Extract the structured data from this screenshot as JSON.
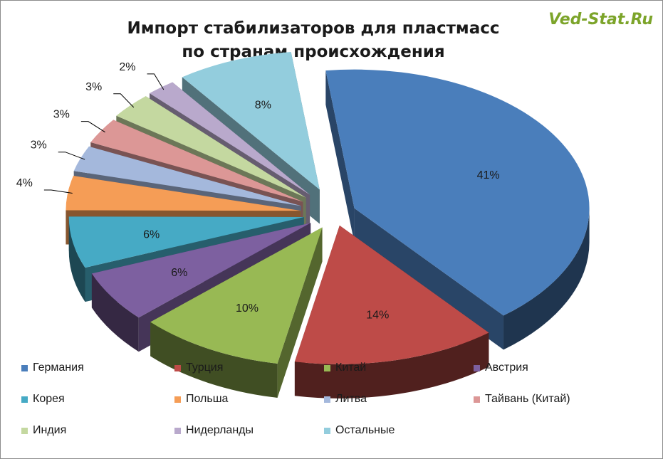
{
  "watermark": "Ved-Stat.Ru",
  "chart_data": {
    "type": "pie",
    "style": "3d-exploded",
    "title": [
      "Импорт стабилизаторов для пластмасс",
      "по странам происхождения"
    ],
    "legend_position": "bottom",
    "series": [
      {
        "name": "",
        "slices": [
          {
            "label": "Германия",
            "value": 41,
            "display": "41%",
            "color": "#4a7ebb"
          },
          {
            "label": "Турция",
            "value": 14,
            "display": "14%",
            "color": "#be4b48"
          },
          {
            "label": "Китай",
            "value": 10,
            "display": "10%",
            "color": "#98b954"
          },
          {
            "label": "Австрия",
            "value": 6,
            "display": "6%",
            "color": "#7d60a0"
          },
          {
            "label": "Корея",
            "value": 6,
            "display": "6%",
            "color": "#46aac5"
          },
          {
            "label": "Польша",
            "value": 4,
            "display": "4%",
            "color": "#f59d56"
          },
          {
            "label": "Литва",
            "value": 3,
            "display": "3%",
            "color": "#a4b8dc"
          },
          {
            "label": "Тайвань (Китай)",
            "value": 3,
            "display": "3%",
            "color": "#dc9796"
          },
          {
            "label": "Индия",
            "value": 3,
            "display": "3%",
            "color": "#c4d8a0"
          },
          {
            "label": "Нидерланды",
            "value": 2,
            "display": "2%",
            "color": "#b9a9cc"
          },
          {
            "label": "Остальные",
            "value": 8,
            "display": "8%",
            "color": "#93cddd"
          }
        ]
      }
    ]
  }
}
